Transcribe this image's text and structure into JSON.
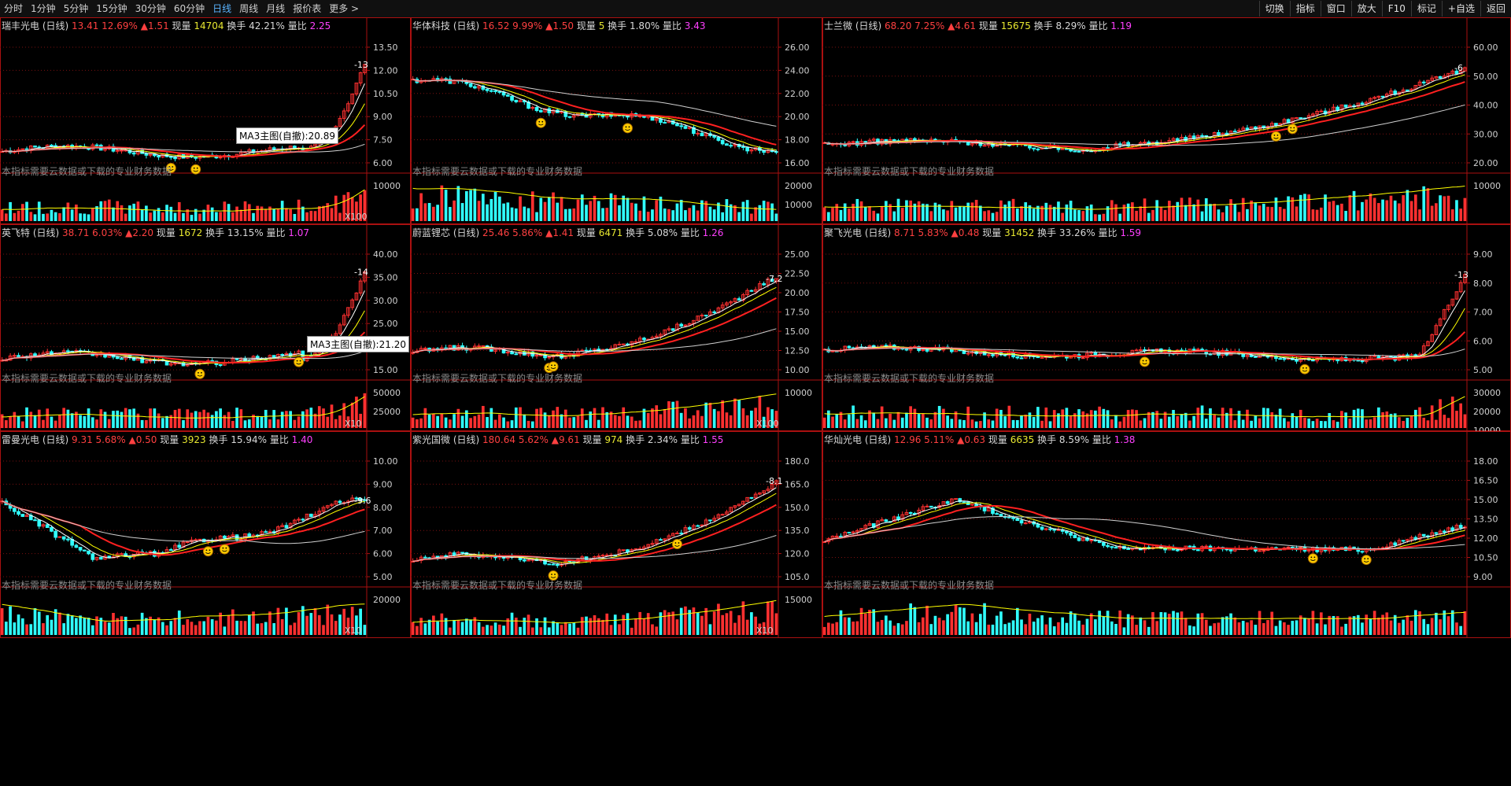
{
  "toolbar": {
    "periods": [
      "分时",
      "1分钟",
      "5分钟",
      "15分钟",
      "30分钟",
      "60分钟",
      "日线",
      "周线",
      "月线",
      "报价表",
      "更多 >"
    ],
    "active": "日线",
    "buttons": [
      "切换",
      "指标",
      "窗口",
      "放大",
      "F10",
      "标记",
      "+自选",
      "返回"
    ]
  },
  "labels": {
    "cloud_notice": "本指标需要云数据或下载的专业财务数据"
  },
  "colors": {
    "up": "#ff3030",
    "down": "#30ffff",
    "ma5": "#ffffff",
    "ma10": "#ffff00",
    "ma20": "#ff00ff",
    "frame": "#aa1010"
  },
  "panels": [
    {
      "name": "瑞丰光电 (日线)",
      "price": "13.41",
      "pct": "12.69%",
      "chg": "▲1.51",
      "now_label": "现量",
      "vol": "14704",
      "turnover_label": "换手",
      "turnover": "42.21%",
      "ratio_label": "量比",
      "ratio": "2.25",
      "yticks": [
        "13.50",
        "12.00",
        "10.50",
        "9.00",
        "7.50",
        "6.00"
      ],
      "vticks": [
        "10000"
      ],
      "xlabel": "X100",
      "price_label": "13",
      "tooltip": "MA3主图(自撤):20.89"
    },
    {
      "name": "华体科技 (日线)",
      "price": "16.52",
      "pct": "9.99%",
      "chg": "▲1.50",
      "now_label": "现量",
      "vol": "5",
      "turnover_label": "换手",
      "turnover": "1.80%",
      "ratio_label": "量比",
      "ratio": "3.43",
      "yticks": [
        "26.00",
        "24.00",
        "22.00",
        "20.00",
        "18.00",
        "16.00"
      ],
      "vticks": [
        "20000",
        "10000"
      ],
      "xlabel": "",
      "price_label": ""
    },
    {
      "name": "士兰微 (日线)",
      "price": "68.20",
      "pct": "7.25%",
      "chg": "▲4.61",
      "now_label": "现量",
      "vol": "15675",
      "turnover_label": "换手",
      "turnover": "8.29%",
      "ratio_label": "量比",
      "ratio": "1.19",
      "yticks": [
        "60.00",
        "50.00",
        "40.00",
        "30.00",
        "20.00"
      ],
      "vticks": [
        "10000"
      ],
      "xlabel": "",
      "price_label": "6"
    },
    {
      "name": "英飞特 (日线)",
      "price": "38.71",
      "pct": "6.03%",
      "chg": "▲2.20",
      "now_label": "现量",
      "vol": "1672",
      "turnover_label": "换手",
      "turnover": "13.15%",
      "ratio_label": "量比",
      "ratio": "1.07",
      "yticks": [
        "40.00",
        "35.00",
        "30.00",
        "25.00",
        "20.00",
        "15.00"
      ],
      "vticks": [
        "50000",
        "25000"
      ],
      "xlabel": "X10",
      "price_label": "14",
      "tooltip": "MA3主图(自撤):21.20"
    },
    {
      "name": "蔚蓝锂芯 (日线)",
      "price": "25.46",
      "pct": "5.86%",
      "chg": "▲1.41",
      "now_label": "现量",
      "vol": "6471",
      "turnover_label": "换手",
      "turnover": "5.08%",
      "ratio_label": "量比",
      "ratio": "1.26",
      "yticks": [
        "25.00",
        "22.50",
        "20.00",
        "17.50",
        "15.00",
        "12.50",
        "10.00"
      ],
      "vticks": [
        "10000"
      ],
      "xlabel": "X100",
      "price_label": "7.2"
    },
    {
      "name": "聚飞光电 (日线)",
      "price": "8.71",
      "pct": "5.83%",
      "chg": "▲0.48",
      "now_label": "现量",
      "vol": "31452",
      "turnover_label": "换手",
      "turnover": "33.26%",
      "ratio_label": "量比",
      "ratio": "1.59",
      "yticks": [
        "9.00",
        "8.00",
        "7.00",
        "6.00",
        "5.00"
      ],
      "vticks": [
        "30000",
        "20000",
        "10000"
      ],
      "xlabel": "",
      "price_label": "13"
    },
    {
      "name": "雷曼光电 (日线)",
      "price": "9.31",
      "pct": "5.68%",
      "chg": "▲0.50",
      "now_label": "现量",
      "vol": "3923",
      "turnover_label": "换手",
      "turnover": "15.94%",
      "ratio_label": "量比",
      "ratio": "1.40",
      "yticks": [
        "10.00",
        "9.00",
        "8.00",
        "7.00",
        "6.00",
        "5.00"
      ],
      "vticks": [
        "20000"
      ],
      "xlabel": "X10",
      "price_label": "9.6"
    },
    {
      "name": "紫光国微 (日线)",
      "price": "180.64",
      "pct": "5.62%",
      "chg": "▲9.61",
      "now_label": "现量",
      "vol": "974",
      "turnover_label": "换手",
      "turnover": "2.34%",
      "ratio_label": "量比",
      "ratio": "1.55",
      "yticks": [
        "180.0",
        "165.0",
        "150.0",
        "135.0",
        "120.0",
        "105.0"
      ],
      "vticks": [
        "15000"
      ],
      "xlabel": "X10",
      "price_label": "8.1"
    },
    {
      "name": "华灿光电 (日线)",
      "price": "12.96",
      "pct": "5.11%",
      "chg": "▲0.63",
      "now_label": "现量",
      "vol": "6635",
      "turnover_label": "换手",
      "turnover": "8.59%",
      "ratio_label": "量比",
      "ratio": "1.38",
      "yticks": [
        "18.00",
        "16.50",
        "15.00",
        "13.50",
        "12.00",
        "10.50",
        "9.00"
      ],
      "vticks": [],
      "xlabel": "",
      "price_label": ""
    }
  ]
}
